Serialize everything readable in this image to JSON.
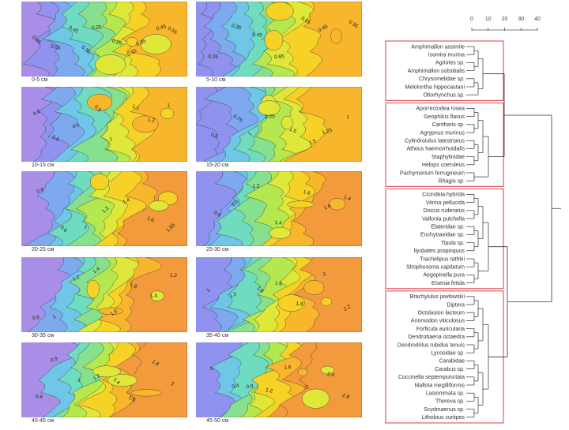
{
  "panels": [
    {
      "depth": "0-5 см",
      "contour_labels": [
        "0.65",
        "0.55",
        "0.45",
        "0.35",
        "0.25",
        "0.25",
        "0.15",
        "0.35",
        "0.45",
        "0.55"
      ]
    },
    {
      "depth": "5-10 см",
      "contour_labels": [
        "0.25",
        "0.35",
        "0.45",
        "0.65",
        "0.55",
        "0.45",
        "0.35"
      ]
    },
    {
      "depth": "10-15 см",
      "contour_labels": [
        "0.8",
        "0.6",
        "0.4",
        "0.9",
        "1",
        "1.1",
        "1.2",
        "1"
      ]
    },
    {
      "depth": "15-20 см",
      "contour_labels": [
        "0.5",
        "0.75",
        "1",
        "1.25",
        "1.5",
        "1.5",
        "1.25",
        "1"
      ]
    },
    {
      "depth": "20-25 см",
      "contour_labels": [
        "0.8",
        "0.6",
        "1",
        "1.2",
        "1.4",
        "1.6",
        "1.55"
      ]
    },
    {
      "depth": "25-30 см",
      "contour_labels": [
        "0.8",
        "0.6",
        "1.2",
        "1.4",
        "1.6",
        "1.6",
        "1.4"
      ]
    },
    {
      "depth": "30-35 см",
      "contour_labels": [
        "0.8",
        "1",
        "1.2",
        "1.4",
        "1.6",
        "1.8",
        "1.4",
        "1.2"
      ]
    },
    {
      "depth": "35-40 см",
      "contour_labels": [
        "1",
        "1.2",
        "1.4",
        "1.6",
        "1.8",
        "2",
        "2.2"
      ]
    },
    {
      "depth": "40-45 см",
      "contour_labels": [
        "0.8",
        "0.9",
        "1",
        "1.2",
        "1.4",
        "1.6",
        "1.8",
        "2"
      ]
    },
    {
      "depth": "45-50 см",
      "contour_labels": [
        "0",
        "0.4",
        "0.8",
        "1.2",
        "1.6",
        "2",
        "2.4",
        "2.8"
      ]
    }
  ],
  "scale_ticks": [
    "0",
    "10",
    "20",
    "30",
    "40"
  ],
  "clusters": [
    {
      "taxa": [
        "Amphimallon assimile",
        "Isomira murina",
        "Agriotes sp.",
        "Amphimallon solstitialis",
        "Chrysomelidae sp.",
        "Melolontha hippocastani",
        "Otiorhynchus sp."
      ]
    },
    {
      "taxa": [
        "Aporrectodea rosea",
        "Geophilus flavus",
        "Cantharis sp.",
        "Agrypnus murinus",
        "Cylindroiulus latestriatus",
        "Athous haemorrhoidalis",
        "Staphylinidae",
        "Helops coeruleus",
        "Pachymerium ferrugineum",
        "Rhagio sp."
      ]
    },
    {
      "taxa": [
        "Cicindela hybrida",
        "Vitrina pellucida",
        "Discus ruderatus",
        "Vallonia pulchella",
        "Elateridae sp.",
        "Enchytraeidae sp.",
        "Tipula sp.",
        "Ilyobates propinquus",
        "Trachelipus rathkii",
        "Strophosoma capitatum",
        "Aegopinella pura",
        "Eisenia fetida"
      ]
    },
    {
      "taxa": [
        "Brachyiulus jawlowskii",
        "Diptera",
        "Octolasion lacteum",
        "Anomodon viticulosus",
        "Forficula auricularia",
        "Dendrobaena octaedra",
        "Dendrodrilus rubidus tenuis",
        "Lycosidae sp.",
        "Carabidae",
        "Carabus sp.",
        "Coccinella septempunctata",
        "Mallota megilliformis",
        "Lasiommata sp.",
        "Thereva sp.",
        "Scydmaenus sp.",
        "Lithobius curtipes"
      ]
    }
  ]
}
